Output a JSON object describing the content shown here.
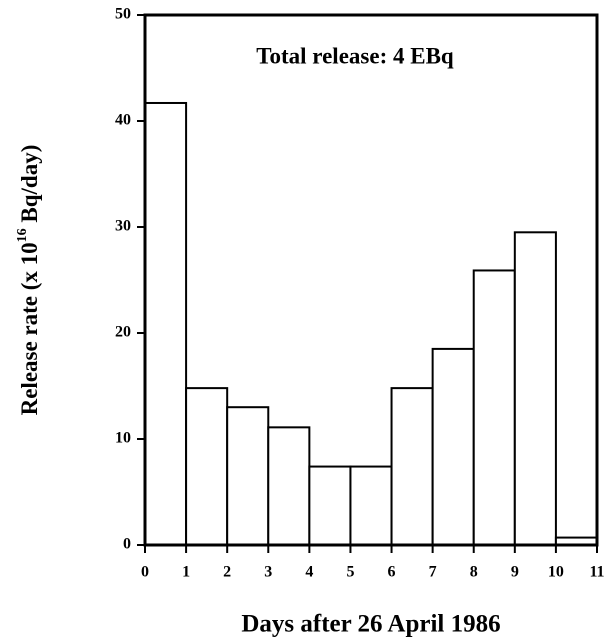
{
  "chart_data": {
    "type": "histogram",
    "annotation": "Total release: 4 EBq",
    "x_label": "Days after 26 April 1986",
    "y_label": {
      "before": "Release rate (x 10",
      "superscript": "16",
      "after": " Bq/day)"
    },
    "bins": [
      0,
      1,
      2,
      3,
      4,
      5,
      6,
      7,
      8,
      9,
      10,
      11
    ],
    "values": [
      41.7,
      14.8,
      13,
      11.1,
      7.4,
      7.4,
      14.8,
      18.5,
      25.9,
      29.5,
      0.7
    ],
    "color": "#ffffff",
    "xlim": [
      0,
      11
    ],
    "xticks": [
      0,
      1,
      2,
      3,
      4,
      5,
      6,
      7,
      8,
      9,
      10,
      11
    ],
    "ylim": [
      0,
      50
    ],
    "yticks": [
      0,
      10,
      20,
      30,
      40,
      50
    ],
    "grid": false
  }
}
